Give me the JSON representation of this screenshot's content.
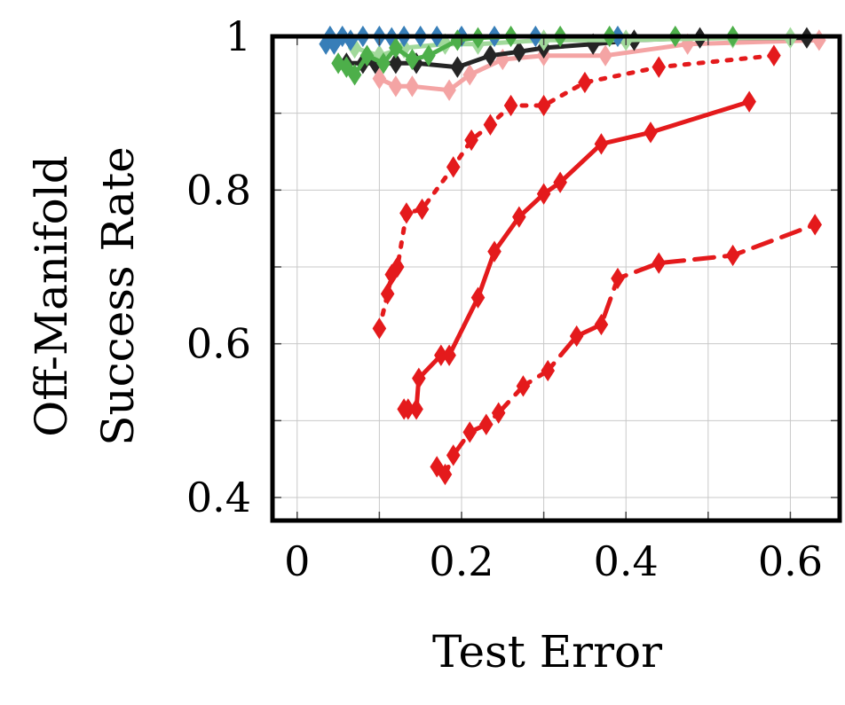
{
  "chart_data": {
    "type": "line",
    "title": "",
    "xlabel": "Test Error",
    "ylabel": [
      "Off-Manifold",
      "Success Rate"
    ],
    "xlim": [
      -0.03,
      0.66
    ],
    "ylim": [
      0.37,
      1.0
    ],
    "x_ticks": [
      0,
      0.2,
      0.4,
      0.6
    ],
    "x_tick_labels": [
      "0",
      "0.2",
      "0.4",
      "0.6"
    ],
    "y_ticks": [
      0.4,
      0.6,
      0.8,
      1.0
    ],
    "y_tick_labels": [
      "0.4",
      "0.6",
      "0.8",
      "1"
    ],
    "grid": true,
    "marker": "diamond",
    "series": [
      {
        "color": "#e41a1c",
        "dash": "dashed",
        "x": [
          0.17,
          0.18,
          0.19,
          0.21,
          0.23,
          0.245,
          0.275,
          0.305,
          0.34,
          0.37,
          0.39,
          0.44,
          0.53,
          0.63
        ],
        "y": [
          0.44,
          0.43,
          0.455,
          0.485,
          0.495,
          0.51,
          0.545,
          0.565,
          0.61,
          0.625,
          0.685,
          0.705,
          0.715,
          0.755
        ]
      },
      {
        "color": "#e41a1c",
        "dash": "solid",
        "x": [
          0.13,
          0.135,
          0.145,
          0.148,
          0.175,
          0.185,
          0.22,
          0.24,
          0.27,
          0.3,
          0.32,
          0.37,
          0.43,
          0.55
        ],
        "y": [
          0.515,
          0.515,
          0.515,
          0.555,
          0.585,
          0.585,
          0.66,
          0.72,
          0.765,
          0.795,
          0.81,
          0.86,
          0.875,
          0.915
        ]
      },
      {
        "color": "#e41a1c",
        "dash": "dotted",
        "x": [
          0.1,
          0.11,
          0.115,
          0.122,
          0.133,
          0.152,
          0.19,
          0.212,
          0.235,
          0.26,
          0.3,
          0.35,
          0.44,
          0.58
        ],
        "y": [
          0.62,
          0.665,
          0.69,
          0.7,
          0.77,
          0.775,
          0.83,
          0.865,
          0.885,
          0.91,
          0.91,
          0.94,
          0.96,
          0.975
        ]
      },
      {
        "color": "#f4a4a4",
        "dash": "solid",
        "x": [
          0.1,
          0.12,
          0.14,
          0.185,
          0.21,
          0.25,
          0.3,
          0.375,
          0.475,
          0.635
        ],
        "y": [
          0.945,
          0.935,
          0.935,
          0.93,
          0.95,
          0.97,
          0.975,
          0.975,
          0.99,
          0.995
        ]
      },
      {
        "color": "#252525",
        "dash": "solid",
        "x": [
          0.06,
          0.08,
          0.095,
          0.12,
          0.145,
          0.195,
          0.235,
          0.27,
          0.3,
          0.36,
          0.41,
          0.49,
          0.62
        ],
        "y": [
          0.965,
          0.965,
          0.965,
          0.965,
          0.965,
          0.96,
          0.975,
          0.98,
          0.985,
          0.99,
          0.995,
          0.998,
          0.998
        ]
      },
      {
        "color": "#a1d99b",
        "dash": "solid",
        "x": [
          0.07,
          0.1,
          0.13,
          0.18,
          0.22,
          0.3,
          0.4,
          0.53,
          0.6
        ],
        "y": [
          0.985,
          0.975,
          0.985,
          0.99,
          0.99,
          0.995,
          0.995,
          0.998,
          0.998
        ]
      },
      {
        "color": "#377eb8",
        "dash": "solid",
        "x": [
          0.035,
          0.04,
          0.045,
          0.055,
          0.065,
          0.08,
          0.1,
          0.115,
          0.13,
          0.15,
          0.17,
          0.2,
          0.24,
          0.29,
          0.39
        ],
        "y": [
          0.99,
          1.0,
          0.99,
          1.0,
          0.995,
          1.0,
          1.0,
          0.998,
          1.0,
          1.0,
          1.0,
          1.0,
          1.0,
          1.0,
          1.0
        ]
      },
      {
        "color": "#4daf4a",
        "dash": "solid",
        "x": [
          0.05,
          0.06,
          0.07,
          0.085,
          0.105,
          0.12,
          0.14,
          0.16,
          0.195,
          0.22,
          0.26,
          0.32,
          0.38,
          0.46,
          0.53
        ],
        "y": [
          0.965,
          0.96,
          0.95,
          0.975,
          0.965,
          0.985,
          0.97,
          0.975,
          0.995,
          0.998,
          1.0,
          1.0,
          1.0,
          1.0,
          1.0
        ]
      }
    ]
  }
}
